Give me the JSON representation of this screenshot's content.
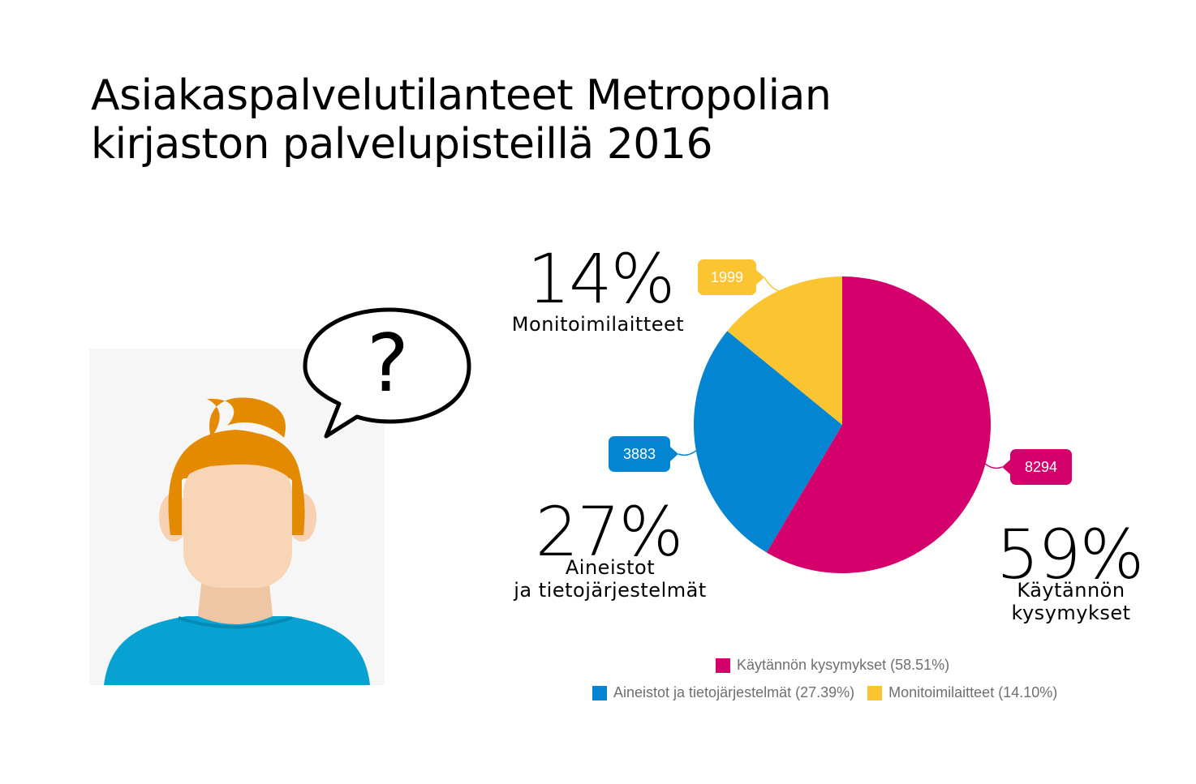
{
  "title": "Asiakaspalvelutilanteet Metropolian\nkirjaston palvelupisteillä 2016",
  "bubble": {
    "symbol": "?"
  },
  "colors": {
    "magenta": "#d4006b",
    "blue": "#0485d1",
    "yellow": "#fbc531"
  },
  "big_labels": {
    "monitoimi": {
      "pct": "14%",
      "text": "Monitoimilaitteet"
    },
    "aineistot": {
      "pct": "27%",
      "text": "Aineistot\nja tietojärjestelmät"
    },
    "kaytannon": {
      "pct": "59%",
      "text": "Käytännön\nkysymykset"
    }
  },
  "chart_data": {
    "type": "pie",
    "series": [
      {
        "name": "Käytännön kysymykset",
        "value": 8294,
        "label": "8294",
        "percent_label": "58.51%",
        "color": "#d4006b"
      },
      {
        "name": "Aineistot ja tietojärjestelmät",
        "value": 3883,
        "label": "3883",
        "percent_label": "27.39%",
        "color": "#0485d1"
      },
      {
        "name": "Monitoimilaitteet",
        "value": 1999,
        "label": "1999",
        "percent_label": "14.10%",
        "color": "#fbc531"
      }
    ],
    "legend": [
      {
        "text": "Käytännön kysymykset (58.51%)",
        "color": "#d4006b"
      },
      {
        "text": "Aineistot ja tietojärjestelmät (27.39%)",
        "color": "#0485d1"
      },
      {
        "text": "Monitoimilaitteet (14.10%)",
        "color": "#fbc531"
      }
    ],
    "legend_position": "bottom"
  }
}
